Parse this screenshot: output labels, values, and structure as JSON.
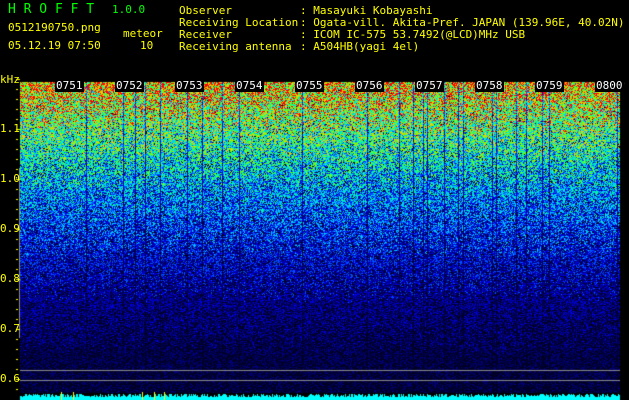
{
  "header": {
    "app_title": "H R O F F T",
    "version": "1.0.0",
    "filename": "0512190750.png",
    "datetime": "05.12.19 07:50",
    "meteor_label": "meteor",
    "meteor_count": "10"
  },
  "info": [
    {
      "label": "Observer",
      "value": ": Masayuki Kobayashi"
    },
    {
      "label": "Receiving Location",
      "value": ": Ogata-vill. Akita-Pref. JAPAN (139.96E, 40.02N)"
    },
    {
      "label": "Receiver",
      "value": ": ICOM IC-575 53.7492(@LCD)MHz USB"
    },
    {
      "label": "Receiving antenna",
      "value": ": A504HB(yagi 4el)"
    }
  ],
  "spectrogram": {
    "y_unit": "kHz",
    "y_ticks": [
      "1.1",
      "1.0",
      "0.9",
      "0.8",
      "0.7",
      "0.6"
    ],
    "time_labels": [
      "0751",
      "0752",
      "0753",
      "0754",
      "0755",
      "0756",
      "0757",
      "0758",
      "0759",
      "0800"
    ],
    "colors": {
      "bottom_bar": "#00ffff",
      "axis_text": "#ffff00",
      "title": "#00ff00"
    }
  }
}
